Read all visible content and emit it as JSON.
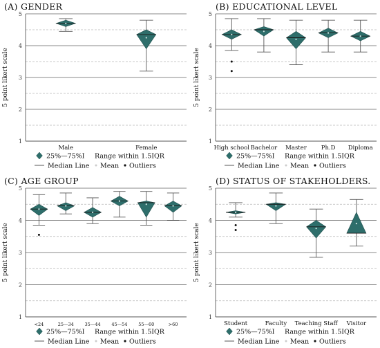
{
  "legend": {
    "box_label": "25%—75%I",
    "range_label": "Range within 1.5IQR",
    "median_label": "Median Line",
    "mean_label": "Mean",
    "outliers_label": "Outliers"
  },
  "colors": {
    "box_fill": "#2e6e6b",
    "box_stroke": "#1f4f4d",
    "grid_major": "#8a8a8a",
    "grid_minor": "#b8b8b8"
  },
  "chart_data": [
    {
      "id": "A",
      "type": "box",
      "title": "(A) GENDER",
      "ylabel": "5 point likert scale",
      "ylim": [
        1,
        5
      ],
      "yticks": [
        "1",
        "2",
        "3",
        "4",
        "5"
      ],
      "grid": true,
      "categories": [
        "Male",
        "Female"
      ],
      "boxes": [
        {
          "whisker_low": 4.45,
          "q1": 4.6,
          "median": 4.7,
          "q3": 4.8,
          "whisker_high": 4.85,
          "mean": 4.7,
          "outliers": []
        },
        {
          "whisker_low": 3.2,
          "q1": 3.9,
          "median": 4.35,
          "q3": 4.5,
          "whisker_high": 4.8,
          "mean": 4.25,
          "outliers": []
        }
      ]
    },
    {
      "id": "B",
      "type": "box",
      "title": "(B) EDUCATIONAL LEVEL",
      "ylabel": "5 point likert scale",
      "ylim": [
        1,
        5
      ],
      "yticks": [
        "1",
        "2",
        "3",
        "4",
        "5"
      ],
      "grid": true,
      "categories": [
        "High school",
        "Bachelor",
        "Master",
        "Ph.D",
        "Diploma"
      ],
      "boxes": [
        {
          "whisker_low": 3.85,
          "q1": 4.2,
          "median": 4.35,
          "q3": 4.5,
          "whisker_high": 4.85,
          "mean": 4.35,
          "outliers": [
            3.5,
            3.2
          ]
        },
        {
          "whisker_low": 3.8,
          "q1": 4.3,
          "median": 4.5,
          "q3": 4.6,
          "whisker_high": 4.85,
          "mean": 4.45,
          "outliers": []
        },
        {
          "whisker_low": 3.4,
          "q1": 3.9,
          "median": 4.25,
          "q3": 4.45,
          "whisker_high": 4.8,
          "mean": 4.2,
          "outliers": []
        },
        {
          "whisker_low": 3.8,
          "q1": 4.25,
          "median": 4.4,
          "q3": 4.55,
          "whisker_high": 4.8,
          "mean": 4.4,
          "outliers": []
        },
        {
          "whisker_low": 3.8,
          "q1": 4.15,
          "median": 4.3,
          "q3": 4.45,
          "whisker_high": 4.8,
          "mean": 4.3,
          "outliers": []
        }
      ]
    },
    {
      "id": "C",
      "type": "box",
      "title": "(C) AGE GROUP",
      "ylabel": "5 point likert scale",
      "ylim": [
        1,
        5
      ],
      "yticks": [
        "1",
        "2",
        "3",
        "4",
        "5"
      ],
      "grid": true,
      "categories": [
        "<24",
        "25—34",
        "35—44",
        "45—54",
        "55—60",
        ">60"
      ],
      "boxes": [
        {
          "whisker_low": 3.85,
          "q1": 4.15,
          "median": 4.35,
          "q3": 4.5,
          "whisker_high": 4.8,
          "mean": 4.35,
          "outliers": [
            3.55
          ]
        },
        {
          "whisker_low": 4.2,
          "q1": 4.3,
          "median": 4.45,
          "q3": 4.55,
          "whisker_high": 4.85,
          "mean": 4.45,
          "outliers": []
        },
        {
          "whisker_low": 3.9,
          "q1": 4.1,
          "median": 4.25,
          "q3": 4.4,
          "whisker_high": 4.7,
          "mean": 4.25,
          "outliers": []
        },
        {
          "whisker_low": 4.1,
          "q1": 4.45,
          "median": 4.6,
          "q3": 4.75,
          "whisker_high": 4.9,
          "mean": 4.6,
          "outliers": []
        },
        {
          "whisker_low": 3.85,
          "q1": 4.1,
          "median": 4.55,
          "q3": 4.6,
          "whisker_high": 4.9,
          "mean": 4.5,
          "outliers": []
        },
        {
          "whisker_low": 4.0,
          "q1": 4.25,
          "median": 4.45,
          "q3": 4.6,
          "whisker_high": 4.85,
          "mean": 4.45,
          "outliers": []
        }
      ]
    },
    {
      "id": "D",
      "type": "box",
      "title": "(D) STATUS OF STAKEHOLDERS.",
      "ylabel": "5 point likert scale",
      "ylim": [
        1,
        5
      ],
      "yticks": [
        "1",
        "2",
        "3",
        "4",
        "5"
      ],
      "grid": true,
      "categories": [
        "Student",
        "Faculty",
        "Teaching Staff",
        "Visitor"
      ],
      "boxes": [
        {
          "whisker_low": 4.1,
          "q1": 4.2,
          "median": 4.25,
          "q3": 4.3,
          "whisker_high": 4.55,
          "mean": 4.25,
          "outliers": [
            3.85,
            3.7
          ]
        },
        {
          "whisker_low": 3.9,
          "q1": 4.3,
          "median": 4.5,
          "q3": 4.55,
          "whisker_high": 4.85,
          "mean": 4.45,
          "outliers": []
        },
        {
          "whisker_low": 2.85,
          "q1": 3.45,
          "median": 3.8,
          "q3": 4.0,
          "whisker_high": 4.35,
          "mean": 3.75,
          "outliers": []
        },
        {
          "whisker_low": 3.2,
          "q1": 3.6,
          "median": 3.6,
          "q3": 4.25,
          "whisker_high": 4.65,
          "mean": 3.9,
          "outliers": []
        }
      ]
    }
  ]
}
